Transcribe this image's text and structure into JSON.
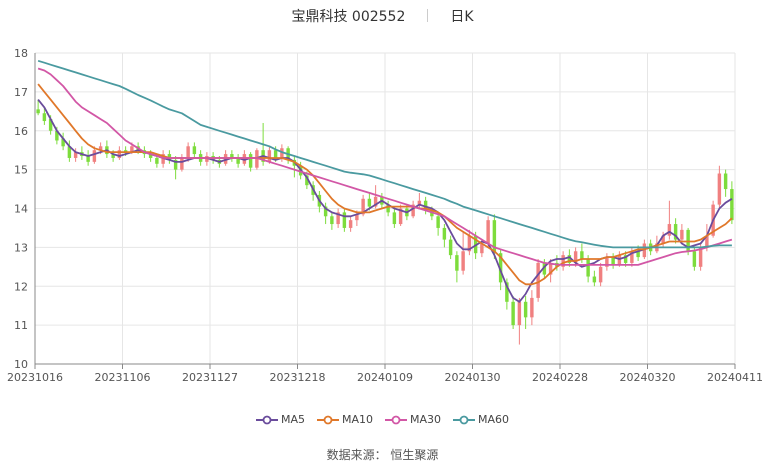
{
  "header": {
    "stock_name": "宝鼎科技",
    "stock_code": "002552",
    "period": "日K"
  },
  "source": {
    "label": "数据来源：",
    "value": "恒生聚源"
  },
  "colors": {
    "up": "#f08080",
    "down": "#7ddc3c",
    "grid": "#e6e6e6",
    "axis": "#888888"
  },
  "chart_data": {
    "type": "candlestick",
    "ylim": [
      10,
      18
    ],
    "yticks": [
      10,
      11,
      12,
      13,
      14,
      15,
      16,
      17,
      18
    ],
    "xticks": [
      "20231016",
      "20231106",
      "20231127",
      "20231218",
      "20240109",
      "20240130",
      "20240228",
      "20240320",
      "20240411"
    ],
    "grid": true,
    "legend_placement": "bottom",
    "series": [
      {
        "name": "MA5",
        "color": "#6a4c9c",
        "values": [
          16.8,
          16.6,
          16.3,
          16.0,
          15.8,
          15.6,
          15.45,
          15.4,
          15.35,
          15.4,
          15.45,
          15.5,
          15.4,
          15.35,
          15.4,
          15.45,
          15.5,
          15.45,
          15.4,
          15.35,
          15.3,
          15.25,
          15.2,
          15.2,
          15.25,
          15.3,
          15.3,
          15.3,
          15.25,
          15.2,
          15.25,
          15.3,
          15.3,
          15.25,
          15.3,
          15.3,
          15.35,
          15.3,
          15.25,
          15.3,
          15.3,
          15.2,
          15.0,
          14.8,
          14.5,
          14.2,
          14.0,
          13.9,
          13.85,
          13.8,
          13.8,
          13.85,
          13.9,
          14.0,
          14.1,
          14.2,
          14.1,
          14.0,
          13.95,
          13.9,
          14.0,
          14.1,
          14.05,
          14.0,
          13.9,
          13.7,
          13.4,
          13.1,
          12.95,
          12.95,
          13.05,
          13.15,
          13.1,
          12.8,
          12.4,
          12.0,
          11.7,
          11.6,
          11.8,
          12.1,
          12.3,
          12.5,
          12.65,
          12.7,
          12.7,
          12.75,
          12.6,
          12.5,
          12.55,
          12.6,
          12.7,
          12.75,
          12.75,
          12.7,
          12.75,
          12.85,
          12.9,
          12.95,
          13.0,
          13.05,
          13.3,
          13.4,
          13.3,
          13.1,
          13.0,
          13.05,
          13.1,
          13.3,
          13.7,
          14.0,
          14.15,
          14.25
        ]
      },
      {
        "name": "MA10",
        "color": "#e0782a",
        "values": [
          17.2,
          17.0,
          16.8,
          16.6,
          16.4,
          16.2,
          16.0,
          15.8,
          15.65,
          15.55,
          15.5,
          15.45,
          15.45,
          15.45,
          15.45,
          15.45,
          15.45,
          15.45,
          15.45,
          15.4,
          15.35,
          15.3,
          15.3,
          15.3,
          15.3,
          15.3,
          15.3,
          15.3,
          15.3,
          15.3,
          15.3,
          15.3,
          15.3,
          15.3,
          15.3,
          15.3,
          15.3,
          15.3,
          15.3,
          15.3,
          15.25,
          15.2,
          15.1,
          15.0,
          14.85,
          14.65,
          14.45,
          14.25,
          14.1,
          14.0,
          13.95,
          13.9,
          13.9,
          13.9,
          13.95,
          14.0,
          14.05,
          14.05,
          14.05,
          14.05,
          14.05,
          14.0,
          14.0,
          13.95,
          13.9,
          13.8,
          13.65,
          13.5,
          13.4,
          13.3,
          13.2,
          13.1,
          13.0,
          12.9,
          12.75,
          12.55,
          12.35,
          12.15,
          12.05,
          12.05,
          12.1,
          12.2,
          12.35,
          12.5,
          12.6,
          12.65,
          12.65,
          12.7,
          12.7,
          12.7,
          12.7,
          12.75,
          12.75,
          12.8,
          12.85,
          12.9,
          12.95,
          12.95,
          13.0,
          13.05,
          13.1,
          13.15,
          13.15,
          13.15,
          13.15,
          13.15,
          13.2,
          13.3,
          13.4,
          13.5,
          13.6,
          13.75
        ]
      },
      {
        "name": "MA30",
        "color": "#d257a6",
        "values": [
          17.6,
          17.55,
          17.45,
          17.3,
          17.15,
          16.95,
          16.75,
          16.6,
          16.5,
          16.4,
          16.3,
          16.2,
          16.05,
          15.9,
          15.75,
          15.65,
          15.55,
          15.45,
          15.4,
          15.35,
          15.3,
          15.3,
          15.3,
          15.3,
          15.3,
          15.3,
          15.3,
          15.3,
          15.3,
          15.3,
          15.3,
          15.3,
          15.3,
          15.3,
          15.3,
          15.3,
          15.25,
          15.2,
          15.15,
          15.1,
          15.05,
          15.0,
          14.95,
          14.9,
          14.85,
          14.8,
          14.75,
          14.7,
          14.65,
          14.6,
          14.55,
          14.5,
          14.45,
          14.4,
          14.35,
          14.3,
          14.25,
          14.2,
          14.15,
          14.1,
          14.05,
          14.0,
          13.95,
          13.9,
          13.85,
          13.8,
          13.7,
          13.6,
          13.5,
          13.4,
          13.3,
          13.2,
          13.1,
          13.0,
          12.95,
          12.9,
          12.85,
          12.8,
          12.75,
          12.7,
          12.65,
          12.6,
          12.58,
          12.56,
          12.55,
          12.55,
          12.55,
          12.55,
          12.55,
          12.55,
          12.55,
          12.55,
          12.55,
          12.55,
          12.55,
          12.55,
          12.55,
          12.6,
          12.65,
          12.7,
          12.75,
          12.8,
          12.85,
          12.88,
          12.9,
          12.92,
          12.95,
          13.0,
          13.05,
          13.1,
          13.15,
          13.2
        ]
      },
      {
        "name": "MA60",
        "color": "#4a9aa0",
        "values": [
          17.8,
          17.75,
          17.7,
          17.65,
          17.6,
          17.55,
          17.5,
          17.45,
          17.4,
          17.35,
          17.3,
          17.25,
          17.2,
          17.15,
          17.08,
          17.0,
          16.92,
          16.85,
          16.78,
          16.7,
          16.62,
          16.55,
          16.5,
          16.45,
          16.35,
          16.25,
          16.15,
          16.1,
          16.05,
          16.0,
          15.95,
          15.9,
          15.85,
          15.8,
          15.75,
          15.7,
          15.65,
          15.6,
          15.52,
          15.45,
          15.4,
          15.35,
          15.3,
          15.25,
          15.2,
          15.15,
          15.1,
          15.05,
          15.0,
          14.95,
          14.92,
          14.9,
          14.88,
          14.85,
          14.8,
          14.75,
          14.7,
          14.65,
          14.6,
          14.55,
          14.5,
          14.45,
          14.4,
          14.35,
          14.3,
          14.25,
          14.18,
          14.12,
          14.05,
          14.0,
          13.95,
          13.9,
          13.85,
          13.8,
          13.75,
          13.7,
          13.65,
          13.6,
          13.55,
          13.5,
          13.45,
          13.4,
          13.35,
          13.3,
          13.25,
          13.2,
          13.16,
          13.13,
          13.1,
          13.07,
          13.04,
          13.02,
          13.0,
          13.0,
          13.0,
          13.0,
          13.0,
          13.0,
          13.0,
          13.0,
          13.0,
          13.0,
          13.0,
          13.0,
          13.0,
          13.0,
          13.0,
          13.02,
          13.04,
          13.05,
          13.05,
          13.05
        ]
      }
    ],
    "candles": [
      [
        16.55,
        16.45,
        16.8,
        16.4
      ],
      [
        16.45,
        16.25,
        16.6,
        16.15
      ],
      [
        16.3,
        16.0,
        16.4,
        15.9
      ],
      [
        16.0,
        15.75,
        16.1,
        15.65
      ],
      [
        15.8,
        15.6,
        15.95,
        15.5
      ],
      [
        15.6,
        15.3,
        15.75,
        15.2
      ],
      [
        15.3,
        15.45,
        15.55,
        15.2
      ],
      [
        15.45,
        15.35,
        15.6,
        15.25
      ],
      [
        15.35,
        15.2,
        15.5,
        15.1
      ],
      [
        15.2,
        15.5,
        15.6,
        15.15
      ],
      [
        15.5,
        15.6,
        15.7,
        15.4
      ],
      [
        15.6,
        15.4,
        15.75,
        15.3
      ],
      [
        15.4,
        15.3,
        15.5,
        15.2
      ],
      [
        15.3,
        15.5,
        15.6,
        15.25
      ],
      [
        15.5,
        15.45,
        15.6,
        15.35
      ],
      [
        15.45,
        15.6,
        15.7,
        15.4
      ],
      [
        15.6,
        15.5,
        15.7,
        15.4
      ],
      [
        15.5,
        15.4,
        15.6,
        15.3
      ],
      [
        15.4,
        15.3,
        15.5,
        15.2
      ],
      [
        15.3,
        15.15,
        15.4,
        15.05
      ],
      [
        15.15,
        15.4,
        15.5,
        15.05
      ],
      [
        15.4,
        15.25,
        15.5,
        15.15
      ],
      [
        15.25,
        15.0,
        15.35,
        14.75
      ],
      [
        15.0,
        15.3,
        15.4,
        14.95
      ],
      [
        15.3,
        15.6,
        15.7,
        15.2
      ],
      [
        15.6,
        15.4,
        15.7,
        15.3
      ],
      [
        15.4,
        15.2,
        15.5,
        15.1
      ],
      [
        15.2,
        15.35,
        15.45,
        15.1
      ],
      [
        15.35,
        15.25,
        15.45,
        15.15
      ],
      [
        15.25,
        15.15,
        15.35,
        15.05
      ],
      [
        15.15,
        15.4,
        15.5,
        15.1
      ],
      [
        15.4,
        15.3,
        15.5,
        15.2
      ],
      [
        15.3,
        15.15,
        15.4,
        15.05
      ],
      [
        15.15,
        15.4,
        15.5,
        15.1
      ],
      [
        15.4,
        15.05,
        15.45,
        14.95
      ],
      [
        15.05,
        15.5,
        15.55,
        15.0
      ],
      [
        15.5,
        15.2,
        16.2,
        15.1
      ],
      [
        15.2,
        15.5,
        15.6,
        15.15
      ],
      [
        15.5,
        15.3,
        15.6,
        15.2
      ],
      [
        15.3,
        15.55,
        15.65,
        15.2
      ],
      [
        15.55,
        15.25,
        15.6,
        15.15
      ],
      [
        15.25,
        15.1,
        15.35,
        14.8
      ],
      [
        15.1,
        14.85,
        15.2,
        14.75
      ],
      [
        14.85,
        14.6,
        14.95,
        14.5
      ],
      [
        14.6,
        14.35,
        14.7,
        14.2
      ],
      [
        14.35,
        14.05,
        14.45,
        13.9
      ],
      [
        14.05,
        13.8,
        14.15,
        13.6
      ],
      [
        13.8,
        13.6,
        13.9,
        13.45
      ],
      [
        13.6,
        13.9,
        14.0,
        13.5
      ],
      [
        13.9,
        13.5,
        14.0,
        13.4
      ],
      [
        13.5,
        13.7,
        13.8,
        13.4
      ],
      [
        13.7,
        13.85,
        13.95,
        13.55
      ],
      [
        13.85,
        14.25,
        14.35,
        13.8
      ],
      [
        14.25,
        14.05,
        14.4,
        13.95
      ],
      [
        14.05,
        14.3,
        14.6,
        14.0
      ],
      [
        14.3,
        14.1,
        14.4,
        14.0
      ],
      [
        14.1,
        13.9,
        14.2,
        13.8
      ],
      [
        13.9,
        13.6,
        14.0,
        13.5
      ],
      [
        13.6,
        14.0,
        14.1,
        13.55
      ],
      [
        14.0,
        13.8,
        14.1,
        13.7
      ],
      [
        13.8,
        14.1,
        14.2,
        13.75
      ],
      [
        14.1,
        14.2,
        14.4,
        14.0
      ],
      [
        14.2,
        13.95,
        14.3,
        13.85
      ],
      [
        13.95,
        13.8,
        14.05,
        13.7
      ],
      [
        13.8,
        13.5,
        13.9,
        13.3
      ],
      [
        13.5,
        13.2,
        13.6,
        13.0
      ],
      [
        13.2,
        12.8,
        13.3,
        12.7
      ],
      [
        12.8,
        12.4,
        12.9,
        12.1
      ],
      [
        12.4,
        12.9,
        13.4,
        12.3
      ],
      [
        12.9,
        13.3,
        13.45,
        12.8
      ],
      [
        13.3,
        12.85,
        13.4,
        12.7
      ],
      [
        12.85,
        13.1,
        13.2,
        12.75
      ],
      [
        13.1,
        13.7,
        13.8,
        13.0
      ],
      [
        13.7,
        12.85,
        13.85,
        12.7
      ],
      [
        12.85,
        12.1,
        12.95,
        11.9
      ],
      [
        12.1,
        11.6,
        12.2,
        11.4
      ],
      [
        11.6,
        11.0,
        11.75,
        10.9
      ],
      [
        11.0,
        11.6,
        11.7,
        10.5
      ],
      [
        11.6,
        11.2,
        11.75,
        10.9
      ],
      [
        11.2,
        11.7,
        11.9,
        11.0
      ],
      [
        11.7,
        12.6,
        12.7,
        11.6
      ],
      [
        12.6,
        12.3,
        12.7,
        12.2
      ],
      [
        12.3,
        12.6,
        12.7,
        12.1
      ],
      [
        12.6,
        12.5,
        12.8,
        12.4
      ],
      [
        12.5,
        12.8,
        12.9,
        12.4
      ],
      [
        12.8,
        12.6,
        12.95,
        12.5
      ],
      [
        12.6,
        12.9,
        13.0,
        12.5
      ],
      [
        12.9,
        12.7,
        13.1,
        12.6
      ],
      [
        12.7,
        12.25,
        12.8,
        12.1
      ],
      [
        12.25,
        12.1,
        12.4,
        12.0
      ],
      [
        12.1,
        12.5,
        12.6,
        12.0
      ],
      [
        12.5,
        12.75,
        12.85,
        12.4
      ],
      [
        12.75,
        12.55,
        12.85,
        12.45
      ],
      [
        12.55,
        12.8,
        12.9,
        12.5
      ],
      [
        12.8,
        12.6,
        12.9,
        12.5
      ],
      [
        12.6,
        12.9,
        13.0,
        12.5
      ],
      [
        12.9,
        12.75,
        13.05,
        12.65
      ],
      [
        12.75,
        13.1,
        13.2,
        12.7
      ],
      [
        13.1,
        12.9,
        13.2,
        12.8
      ],
      [
        12.9,
        13.1,
        13.3,
        12.85
      ],
      [
        13.1,
        13.3,
        13.4,
        13.0
      ],
      [
        13.3,
        13.6,
        14.2,
        13.2
      ],
      [
        13.6,
        13.2,
        13.75,
        13.1
      ],
      [
        13.2,
        13.45,
        13.6,
        13.1
      ],
      [
        13.45,
        12.9,
        13.5,
        12.8
      ],
      [
        12.9,
        12.5,
        13.0,
        12.4
      ],
      [
        12.5,
        13.0,
        13.1,
        12.4
      ],
      [
        13.0,
        13.3,
        13.6,
        12.9
      ],
      [
        13.3,
        14.1,
        14.2,
        13.25
      ],
      [
        14.1,
        14.9,
        15.1,
        14.0
      ],
      [
        14.9,
        14.5,
        15.0,
        14.3
      ],
      [
        14.5,
        13.7,
        14.7,
        13.6
      ]
    ]
  },
  "legend": [
    {
      "label": "MA5",
      "color": "#6a4c9c"
    },
    {
      "label": "MA10",
      "color": "#e0782a"
    },
    {
      "label": "MA30",
      "color": "#d257a6"
    },
    {
      "label": "MA60",
      "color": "#4a9aa0"
    }
  ]
}
